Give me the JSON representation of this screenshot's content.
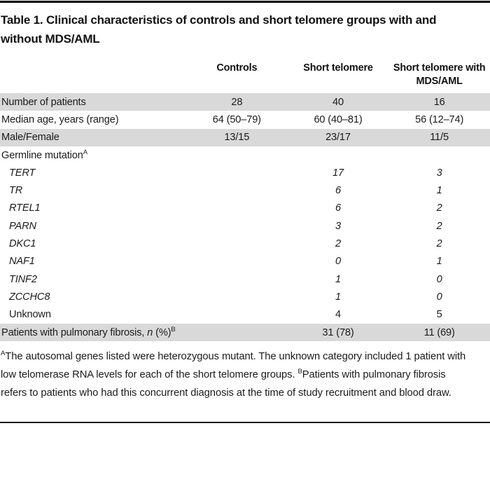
{
  "colors": {
    "shaded_row": "#d9d9d9",
    "rule": "#000000",
    "text": "#1b1b1b"
  },
  "title": "Table 1. Clinical characteristics of controls and short telomere groups with and without MDS/AML",
  "table": {
    "column_headers": [
      "Controls",
      "Short telomere",
      "Short telomere with MDS/AML"
    ],
    "rows": [
      {
        "parts": [
          {
            "text": "Number of patients"
          }
        ],
        "sup": "",
        "indent": false,
        "italic_values": false,
        "shaded": true,
        "values": [
          "28",
          "40",
          "16"
        ]
      },
      {
        "parts": [
          {
            "text": "Median age, years (range)"
          }
        ],
        "sup": "",
        "indent": false,
        "italic_values": false,
        "shaded": false,
        "values": [
          "64 (50–79)",
          "60 (40–81)",
          "56 (12–74)"
        ]
      },
      {
        "parts": [
          {
            "text": "Male/Female"
          }
        ],
        "sup": "",
        "indent": false,
        "italic_values": false,
        "shaded": true,
        "values": [
          "13/15",
          "23/17",
          "11/5"
        ]
      },
      {
        "parts": [
          {
            "text": "Germline mutation"
          }
        ],
        "sup": "A",
        "indent": false,
        "italic_values": false,
        "shaded": false,
        "values": [
          "",
          "",
          ""
        ]
      },
      {
        "parts": [
          {
            "text": "TERT",
            "italic": true
          }
        ],
        "sup": "",
        "indent": true,
        "italic_values": true,
        "shaded": false,
        "values": [
          "",
          "17",
          "3"
        ]
      },
      {
        "parts": [
          {
            "text": "TR",
            "italic": true
          }
        ],
        "sup": "",
        "indent": true,
        "italic_values": true,
        "shaded": false,
        "values": [
          "",
          "6",
          "1"
        ]
      },
      {
        "parts": [
          {
            "text": "RTEL1",
            "italic": true
          }
        ],
        "sup": "",
        "indent": true,
        "italic_values": true,
        "shaded": false,
        "values": [
          "",
          "6",
          "2"
        ]
      },
      {
        "parts": [
          {
            "text": "PARN",
            "italic": true
          }
        ],
        "sup": "",
        "indent": true,
        "italic_values": true,
        "shaded": false,
        "values": [
          "",
          "3",
          "2"
        ]
      },
      {
        "parts": [
          {
            "text": "DKC1",
            "italic": true
          }
        ],
        "sup": "",
        "indent": true,
        "italic_values": true,
        "shaded": false,
        "values": [
          "",
          "2",
          "2"
        ]
      },
      {
        "parts": [
          {
            "text": "NAF1",
            "italic": true
          }
        ],
        "sup": "",
        "indent": true,
        "italic_values": true,
        "shaded": false,
        "values": [
          "",
          "0",
          "1"
        ]
      },
      {
        "parts": [
          {
            "text": "TINF2",
            "italic": true
          }
        ],
        "sup": "",
        "indent": true,
        "italic_values": true,
        "shaded": false,
        "values": [
          "",
          "1",
          "0"
        ]
      },
      {
        "parts": [
          {
            "text": "ZCCHC8",
            "italic": true
          }
        ],
        "sup": "",
        "indent": true,
        "italic_values": true,
        "shaded": false,
        "values": [
          "",
          "1",
          "0"
        ]
      },
      {
        "parts": [
          {
            "text": "Unknown"
          }
        ],
        "sup": "",
        "indent": true,
        "italic_values": false,
        "shaded": false,
        "values": [
          "",
          "4",
          "5"
        ]
      },
      {
        "parts": [
          {
            "text": "Patients with pulmonary fibrosis, "
          },
          {
            "text": "n",
            "italic": true
          },
          {
            "text": " (%)"
          }
        ],
        "sup": "B",
        "indent": false,
        "italic_values": false,
        "shaded": true,
        "values": [
          "",
          "31 (78)",
          "11 (69)"
        ]
      }
    ]
  },
  "footnote": {
    "sup_a": "A",
    "text_a": "The autosomal genes listed were heterozygous mutant. The unknown category included 1 patient with low telomerase RNA levels for each of the short telomere groups. ",
    "sup_b": "B",
    "text_b": "Patients with pulmonary fibrosis refers to patients who had this concurrent diagnosis at the time of study recruitment and blood draw."
  }
}
